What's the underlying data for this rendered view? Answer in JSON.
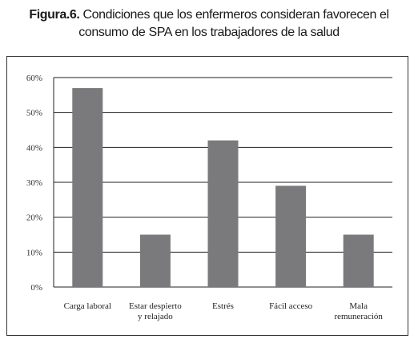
{
  "figure": {
    "label": "Figura.6.",
    "title_line1": "Condiciones que los enfermeros consideran favorecen el",
    "title_line2": "consumo de SPA en los trabajadores de la salud"
  },
  "chart_data": {
    "type": "bar",
    "title": "Figura.6. Condiciones que los enfermeros consideran favorecen el consumo de SPA en los trabajadores de la salud",
    "categories": [
      [
        "Carga laboral"
      ],
      [
        "Estar despierto",
        "y relajado"
      ],
      [
        "Estrés"
      ],
      [
        "Fácil acceso"
      ],
      [
        "Mala",
        "remuneración"
      ]
    ],
    "values": [
      57,
      15,
      42,
      29,
      15
    ],
    "yticks": [
      "0%",
      "10%",
      "20%",
      "30%",
      "40%",
      "50%",
      "60%"
    ],
    "ylim": [
      0,
      60
    ],
    "grid": true,
    "bar_color": "#7a7a7c",
    "xlabel": "",
    "ylabel": ""
  }
}
